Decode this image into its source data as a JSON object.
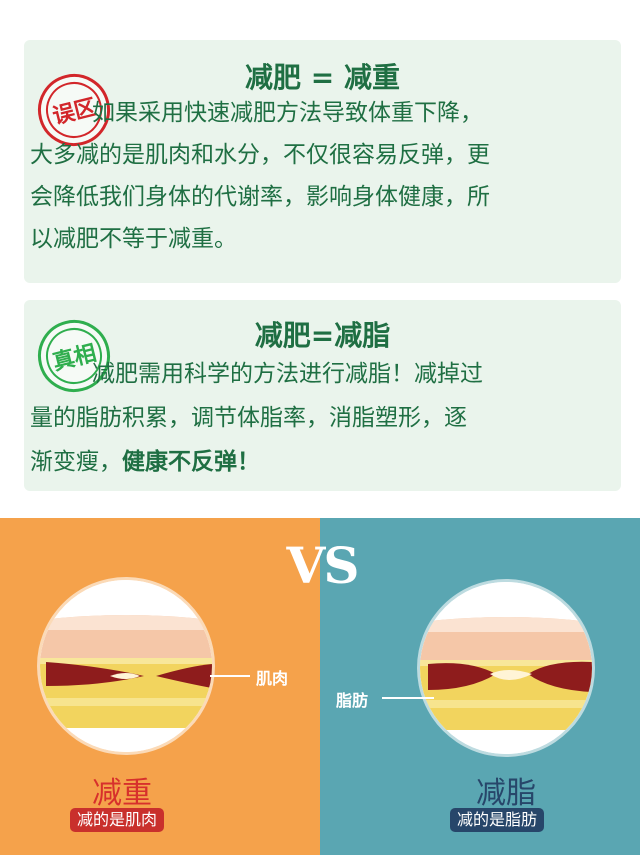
{
  "myth": {
    "stamp": "误区",
    "title": "减肥 = 减重",
    "lines": [
      "如果采用快速减肥方法导致体重下降，",
      "大多减的是肌肉和水分，不仅很容易反弹，更",
      "会降低我们身体的代谢率，影响身体健康，所",
      "以减肥不等于减重。"
    ]
  },
  "truth": {
    "stamp": "真相",
    "title": "减肥=减脂",
    "lines": [
      "减肥需用科学的方法进行减脂！减掉过",
      "量的脂肪积累，调节体脂率，消脂塑形，逐"
    ],
    "last_line_plain": "渐变瘦，",
    "last_line_bold": "健康不反弹！"
  },
  "comparison": {
    "vs": "VS",
    "left": {
      "callout": "肌肉",
      "title": "减重",
      "tag": "减的是肌肉",
      "bg_color": "#f5a24b"
    },
    "right": {
      "callout": "脂肪",
      "title": "减脂",
      "tag": "减的是脂肪",
      "bg_color": "#5aa6b2"
    }
  },
  "colors": {
    "text_green": "#1f6f43",
    "card_bg": "#eaf4ec",
    "stamp_red": "#d2262a",
    "stamp_green": "#2fae4e",
    "muscle": "#8e1c1c",
    "fat": "#f0d35a"
  }
}
